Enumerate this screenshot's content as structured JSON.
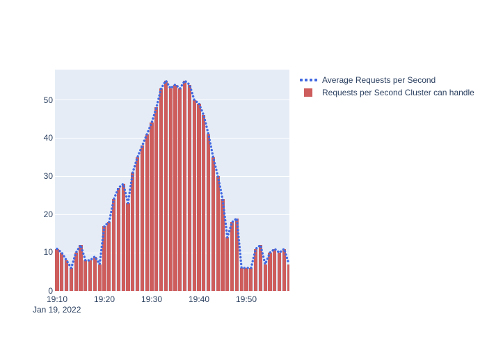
{
  "colors": {
    "bar": "#CD5C5C",
    "line": "#4169E1",
    "plot_bg": "#E5ECF6",
    "grid": "#FFFFFF",
    "tick_text": "#2a3f5f"
  },
  "legend": {
    "items": [
      {
        "label": "Average Requests per Second",
        "symbol": "dotted-line"
      },
      {
        "label": "Requests per Second Cluster can handle",
        "symbol": "square"
      }
    ]
  },
  "axes": {
    "yticks": [
      "0",
      "10",
      "20",
      "30",
      "40",
      "50"
    ],
    "xticks": [
      "19:10",
      "19:20",
      "19:30",
      "19:40",
      "19:50"
    ],
    "date_label": "Jan 19, 2022"
  },
  "chart_data": {
    "type": "bar",
    "title": "",
    "xlabel": "Jan 19, 2022",
    "ylabel": "",
    "ylim": [
      0,
      58
    ],
    "grid": true,
    "legend_position": "top-right-outside",
    "x": [
      "19:10",
      "19:11",
      "19:12",
      "19:13",
      "19:14",
      "19:15",
      "19:16",
      "19:17",
      "19:18",
      "19:19",
      "19:20",
      "19:21",
      "19:22",
      "19:23",
      "19:24",
      "19:25",
      "19:26",
      "19:27",
      "19:28",
      "19:29",
      "19:30",
      "19:31",
      "19:32",
      "19:33",
      "19:34",
      "19:35",
      "19:36",
      "19:37",
      "19:38",
      "19:39",
      "19:40",
      "19:41",
      "19:42",
      "19:43",
      "19:44",
      "19:45",
      "19:46",
      "19:47",
      "19:48",
      "19:49",
      "19:50",
      "19:51",
      "19:52",
      "19:53",
      "19:54",
      "19:55",
      "19:56",
      "19:57",
      "19:58",
      "19:59"
    ],
    "series": [
      {
        "name": "Average Requests per Second",
        "type": "line",
        "style": "dotted",
        "color": "#4169E1",
        "values": [
          11,
          10,
          8,
          6,
          10,
          12,
          8,
          8,
          9,
          7,
          17,
          18,
          24,
          27,
          28,
          23,
          31,
          35,
          38,
          41,
          44,
          48,
          53,
          55,
          53,
          54,
          53,
          55,
          54,
          50,
          49,
          46,
          41,
          35,
          30,
          24,
          14,
          18,
          19,
          6,
          6,
          6,
          11,
          12,
          7,
          10,
          11,
          10,
          11,
          7
        ]
      },
      {
        "name": "Requests per Second Cluster can handle",
        "type": "bar",
        "color": "#CD5C5C",
        "values": [
          11,
          10,
          8,
          6,
          10,
          12,
          8,
          8,
          9,
          7,
          17,
          18,
          24,
          27,
          28,
          23,
          31,
          35,
          38,
          41,
          44,
          48,
          53,
          55,
          53,
          54,
          53,
          55,
          54,
          50,
          49,
          46,
          41,
          35,
          30,
          24,
          14,
          18,
          19,
          6,
          6,
          6,
          11,
          12,
          7,
          10,
          11,
          10,
          11,
          7
        ]
      }
    ],
    "yticks": [
      0,
      10,
      20,
      30,
      40,
      50
    ],
    "xticks": [
      "19:10",
      "19:20",
      "19:30",
      "19:40",
      "19:50"
    ]
  }
}
